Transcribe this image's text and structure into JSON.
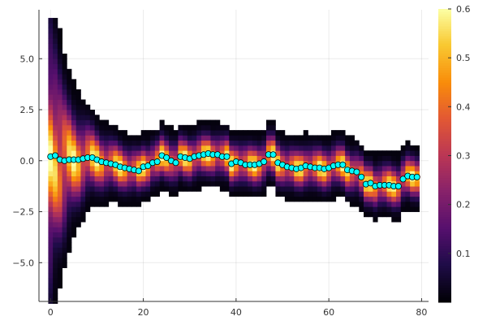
{
  "chart_data": {
    "type": "heatmap",
    "title": "",
    "xlabel": "",
    "ylabel": "",
    "xlim": [
      -2.5,
      81.5
    ],
    "ylim": [
      -6.9,
      7.4
    ],
    "x_ticks": [
      0,
      20,
      40,
      60,
      80
    ],
    "x_tick_labels": [
      "0",
      "20",
      "40",
      "60",
      "80"
    ],
    "y_ticks": [
      -5,
      -2.5,
      0,
      2.5,
      5
    ],
    "y_tick_labels": [
      "−5.0",
      "−2.5",
      "0.0",
      "2.5",
      "5.0"
    ],
    "grid": true,
    "legend": "none",
    "heatmap": {
      "x_start": -0.5,
      "x_end": 80.5,
      "x_bin_width": 1,
      "y_bin_width": 0.25,
      "description_of_values": "density per x column",
      "columns_note": "each column: list of [y_low, y_high, value]"
    },
    "colorbar": {
      "range": [
        0,
        0.6
      ],
      "ticks": [
        0.1,
        0.2,
        0.3,
        0.4,
        0.5,
        0.6
      ],
      "tick_labels": [
        "0.1",
        "0.2",
        "0.3",
        "0.4",
        "0.5",
        "0.6"
      ],
      "colormap": "inferno"
    },
    "series": [
      {
        "type": "scatter",
        "marker_color": "#00ffff",
        "x": [
          0,
          1,
          2,
          3,
          4,
          5,
          6,
          7,
          8,
          9,
          10,
          11,
          12,
          13,
          14,
          15,
          16,
          17,
          18,
          19,
          20,
          21,
          22,
          23,
          24,
          25,
          26,
          27,
          28,
          29,
          30,
          31,
          32,
          33,
          34,
          35,
          36,
          37,
          38,
          39,
          40,
          41,
          42,
          43,
          44,
          45,
          46,
          47,
          48,
          49,
          50,
          51,
          52,
          53,
          54,
          55,
          56,
          57,
          58,
          59,
          60,
          61,
          62,
          63,
          64,
          65,
          66,
          67,
          68,
          69,
          70,
          71,
          72,
          73,
          74,
          75,
          76,
          77,
          78,
          79
        ],
        "y": [
          0.2,
          0.25,
          0.05,
          0.0,
          0.05,
          0.05,
          0.05,
          0.1,
          0.15,
          0.15,
          0.05,
          -0.05,
          -0.1,
          -0.15,
          -0.2,
          -0.3,
          -0.35,
          -0.4,
          -0.45,
          -0.5,
          -0.3,
          -0.25,
          -0.1,
          -0.05,
          0.25,
          0.15,
          0.0,
          -0.1,
          0.2,
          0.15,
          0.1,
          0.2,
          0.25,
          0.3,
          0.35,
          0.3,
          0.3,
          0.2,
          0.2,
          -0.15,
          -0.05,
          -0.1,
          -0.2,
          -0.2,
          -0.2,
          -0.15,
          -0.05,
          0.3,
          0.3,
          -0.1,
          -0.2,
          -0.3,
          -0.35,
          -0.4,
          -0.35,
          -0.25,
          -0.3,
          -0.35,
          -0.35,
          -0.4,
          -0.35,
          -0.25,
          -0.2,
          -0.2,
          -0.45,
          -0.5,
          -0.55,
          -0.8,
          -1.15,
          -1.1,
          -1.25,
          -1.2,
          -1.2,
          -1.2,
          -1.25,
          -1.25,
          -0.9,
          -0.75,
          -0.8,
          -0.8
        ]
      }
    ]
  }
}
